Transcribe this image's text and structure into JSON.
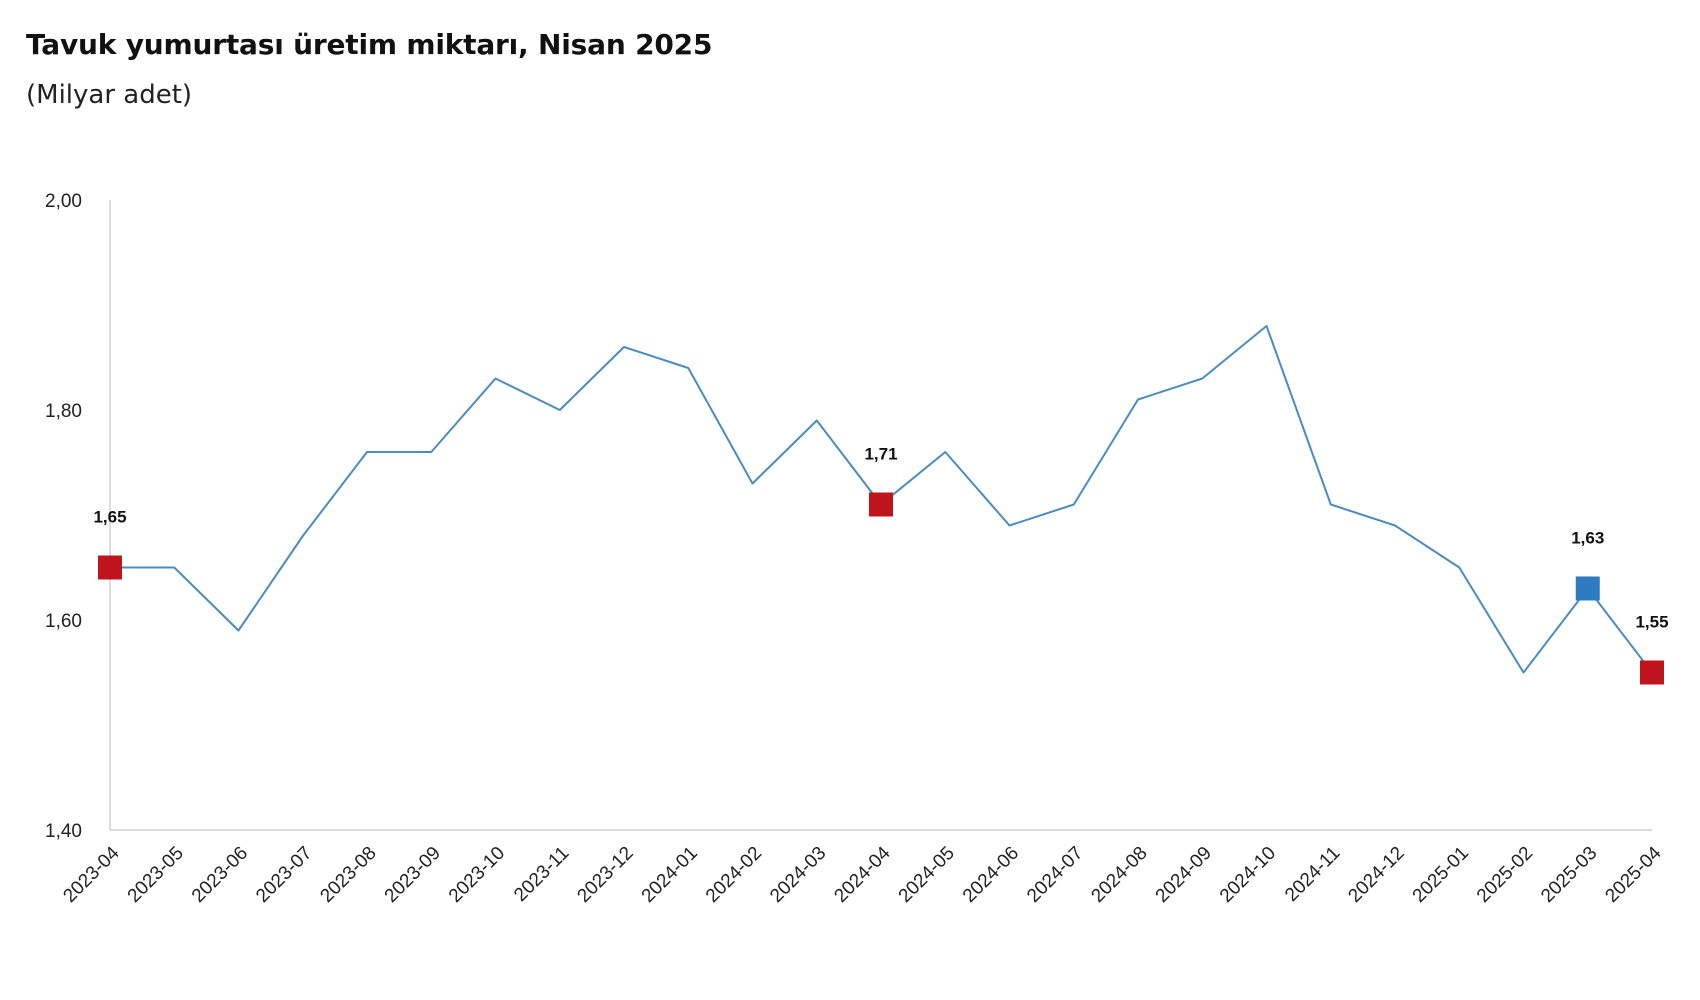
{
  "chart_data": {
    "type": "line",
    "title": "Tavuk yumurtası üretim miktarı, Nisan 2025",
    "subtitle": "(Milyar adet)",
    "xlabel": "",
    "ylabel": "",
    "ylim": [
      1.4,
      2.0
    ],
    "y_ticks": [
      1.4,
      1.6,
      1.8,
      2.0
    ],
    "y_tick_labels": [
      "1,40",
      "1,60",
      "1,80",
      "2,00"
    ],
    "grid": false,
    "legend": "none",
    "categories": [
      "2023-04",
      "2023-05",
      "2023-06",
      "2023-07",
      "2023-08",
      "2023-09",
      "2023-10",
      "2023-11",
      "2023-12",
      "2024-01",
      "2024-02",
      "2024-03",
      "2024-04",
      "2024-05",
      "2024-06",
      "2024-07",
      "2024-08",
      "2024-09",
      "2024-10",
      "2024-11",
      "2024-12",
      "2025-01",
      "2025-02",
      "2025-03",
      "2025-04"
    ],
    "series": [
      {
        "values": [
          1.65,
          1.65,
          1.59,
          1.68,
          1.76,
          1.76,
          1.83,
          1.8,
          1.86,
          1.84,
          1.73,
          1.79,
          1.71,
          1.76,
          1.69,
          1.71,
          1.81,
          1.83,
          1.88,
          1.71,
          1.69,
          1.65,
          1.55,
          1.63,
          1.55
        ],
        "color": "#4a8bc2"
      }
    ],
    "highlighted_points": [
      {
        "category": "2023-04",
        "value": 1.65,
        "label": "1,65",
        "color": "#c0141c"
      },
      {
        "category": "2024-04",
        "value": 1.71,
        "label": "1,71",
        "color": "#c0141c"
      },
      {
        "category": "2025-03",
        "value": 1.63,
        "label": "1,63",
        "color": "#2e7bbf"
      },
      {
        "category": "2025-04",
        "value": 1.55,
        "label": "1,55",
        "color": "#c0141c"
      }
    ],
    "axis_color": "#d0d0d0"
  }
}
